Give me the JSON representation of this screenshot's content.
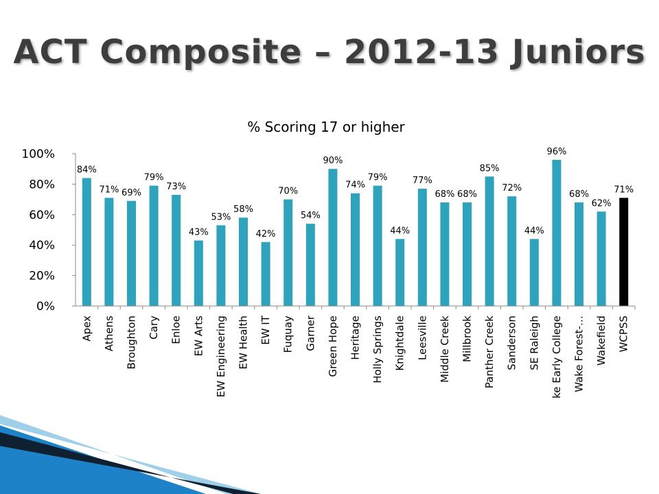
{
  "slide": {
    "title": "ACT Composite – 2012-13 Juniors"
  },
  "colors": {
    "bar": "#2ea3bd",
    "highlight_bar": "#000000",
    "axis": "#8a8a8a",
    "title_text": "#3d3d3d",
    "corner_dark": "#0f2030",
    "corner_blue": "#1e82c8"
  },
  "chart_data": {
    "type": "bar",
    "title": "% Scoring 17 or higher",
    "xlabel": "",
    "ylabel": "",
    "ylim": [
      0,
      100
    ],
    "yticks": [
      "0%",
      "20%",
      "40%",
      "60%",
      "80%",
      "100%"
    ],
    "grid": false,
    "legend": "none",
    "highlight_category": "WCPSS",
    "categories": [
      "Apex",
      "Athens",
      "Broughton",
      "Cary",
      "Enloe",
      "EW Arts",
      "EW Engineering",
      "EW Health",
      "EW IT",
      "Fuquay",
      "Garner",
      "Green Hope",
      "Heritage",
      "Holly Springs",
      "Knightdale",
      "Leesville",
      "Middle Creek",
      "Millbrook",
      "Panther Creek",
      "Sanderson",
      "SE Raleigh",
      "Wake Early College",
      "Wake Forest-…",
      "Wakefield",
      "WCPSS"
    ],
    "values": [
      84,
      71,
      69,
      79,
      73,
      43,
      53,
      58,
      42,
      70,
      54,
      90,
      74,
      79,
      44,
      77,
      68,
      68,
      85,
      72,
      44,
      96,
      68,
      62,
      71
    ],
    "labels": [
      "84%",
      "71%",
      "69%",
      "79%",
      "73%",
      "43%",
      "53%",
      "58%",
      "42%",
      "70%",
      "54%",
      "90%",
      "74%",
      "79%",
      "44%",
      "77%",
      "68%",
      "68%",
      "85%",
      "72%",
      "44%",
      "96%",
      "68%",
      "62%",
      "71%"
    ]
  }
}
